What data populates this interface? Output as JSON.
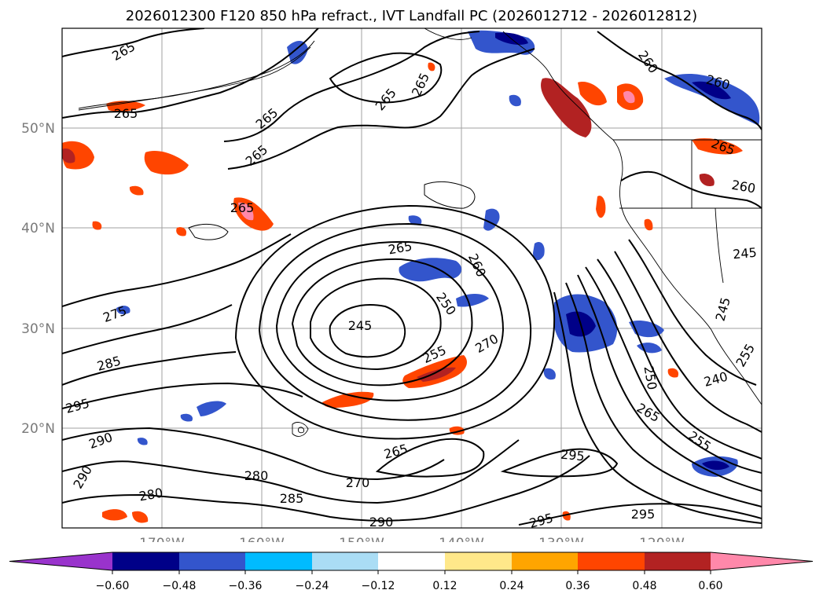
{
  "title": "2026012300 F120 850 hPa refract., IVT Landfall PC (2026012712 - 2026012812)",
  "map": {
    "extent": {
      "lon_min": -180,
      "lon_max": -110,
      "lat_min": 10,
      "lat_max": 60
    },
    "lat_labels": [
      "50°N",
      "40°N",
      "30°N",
      "20°N"
    ],
    "lon_labels": [
      "170°W",
      "160°W",
      "150°W",
      "140°W",
      "130°W",
      "120°W"
    ],
    "contour_labels": [
      "265",
      "265",
      "265",
      "265",
      "265",
      "265",
      "260",
      "260",
      "265",
      "265",
      "260",
      "265",
      "260",
      "250",
      "245",
      "275",
      "285",
      "255",
      "270",
      "295",
      "290",
      "290",
      "280",
      "280",
      "285",
      "265",
      "270",
      "290",
      "295",
      "295",
      "250",
      "265",
      "255",
      "240",
      "245",
      "245",
      "255",
      "295"
    ]
  },
  "colorbar": {
    "ticks": [
      "−0.60",
      "−0.48",
      "−0.36",
      "−0.24",
      "−0.12",
      "0.12",
      "0.24",
      "0.36",
      "0.48",
      "0.60"
    ],
    "colors": [
      "#9933cc",
      "#000088",
      "#3355cc",
      "#00bbff",
      "#aaddf5",
      "#ffffff",
      "#ffe88a",
      "#ffa500",
      "#ff4500",
      "#b22222",
      "#ff88aa"
    ]
  }
}
